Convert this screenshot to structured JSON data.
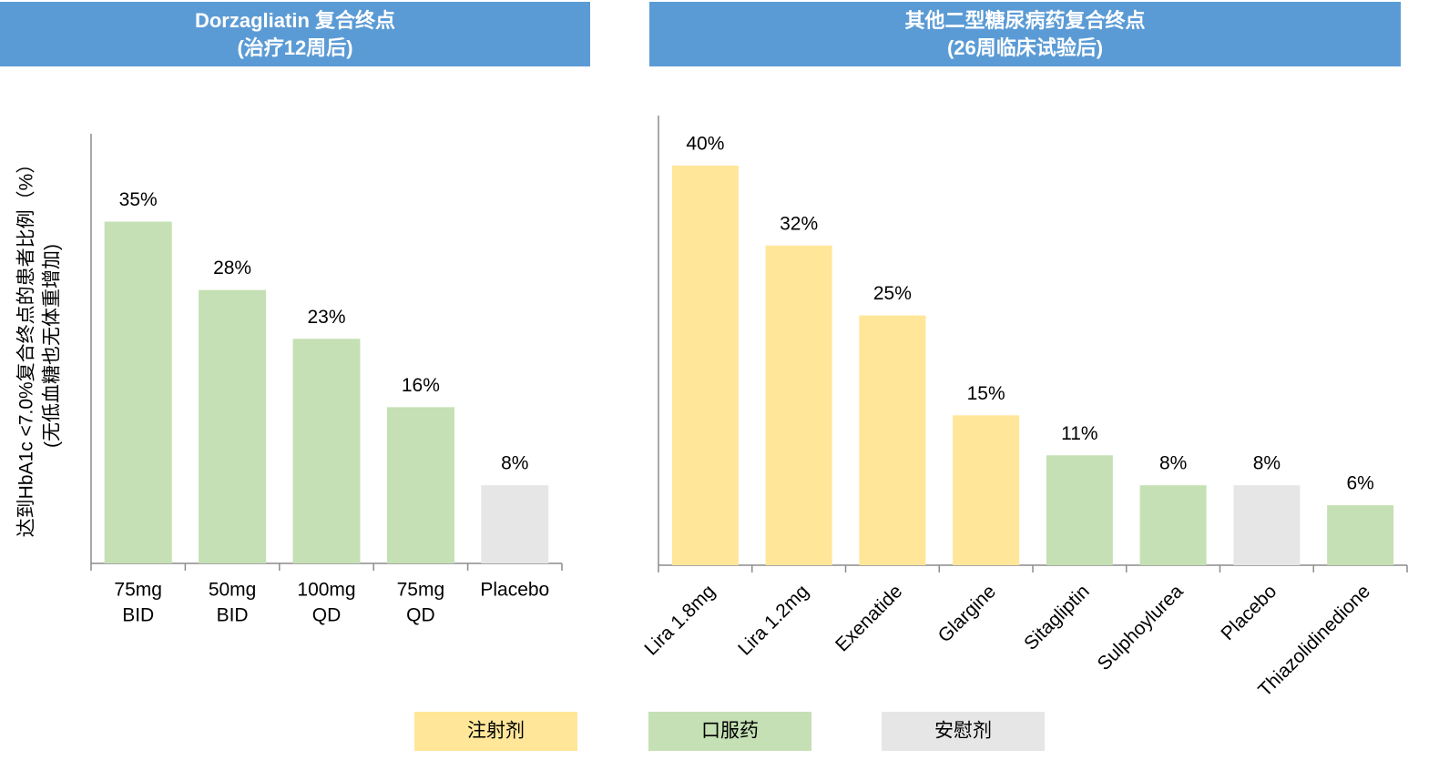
{
  "chart_data": [
    {
      "type": "bar",
      "title": "Dorzagliatin 复合终点",
      "subtitle": "(治疗12周后)",
      "ylabel": [
        "达到HbA1c <7.0%复合终点的患者比例（%）",
        "(无低血糖也无体重增加)"
      ],
      "categories": [
        [
          "75mg",
          "BID"
        ],
        [
          "50mg",
          "BID"
        ],
        [
          "100mg",
          "QD"
        ],
        [
          "75mg",
          "QD"
        ],
        [
          "Placebo"
        ]
      ],
      "values": [
        35,
        28,
        23,
        16,
        8
      ],
      "value_labels": [
        "35%",
        "28%",
        "23%",
        "16%",
        "8%"
      ],
      "colors": [
        "#c5e0b4",
        "#c5e0b4",
        "#c5e0b4",
        "#c5e0b4",
        "#e7e6e6"
      ],
      "ylim": [
        0,
        44
      ],
      "label_rotation": 0
    },
    {
      "type": "bar",
      "title": "其他二型糖尿病药复合终点",
      "subtitle": "(26周临床试验后)",
      "categories": [
        [
          "Lira 1.8mg"
        ],
        [
          "Lira 1.2mg"
        ],
        [
          "Exenatide"
        ],
        [
          "Glargine"
        ],
        [
          "Sitagliptin"
        ],
        [
          "Sulphoylurea"
        ],
        [
          "Placebo"
        ],
        [
          "Thiazolidinedione"
        ]
      ],
      "values": [
        40,
        32,
        25,
        15,
        11,
        8,
        8,
        6
      ],
      "value_labels": [
        "40%",
        "32%",
        "25%",
        "15%",
        "11%",
        "8%",
        "8%",
        "6%"
      ],
      "colors": [
        "#ffe699",
        "#ffe699",
        "#ffe699",
        "#ffe699",
        "#c5e0b4",
        "#c5e0b4",
        "#e7e6e6",
        "#c5e0b4"
      ],
      "ylim": [
        0,
        45
      ],
      "label_rotation": -45
    }
  ],
  "legend": [
    {
      "name": "注射剂",
      "color": "#ffe699"
    },
    {
      "name": "口服药",
      "color": "#c5e0b4"
    },
    {
      "name": "安慰剂",
      "color": "#e7e6e6"
    }
  ]
}
